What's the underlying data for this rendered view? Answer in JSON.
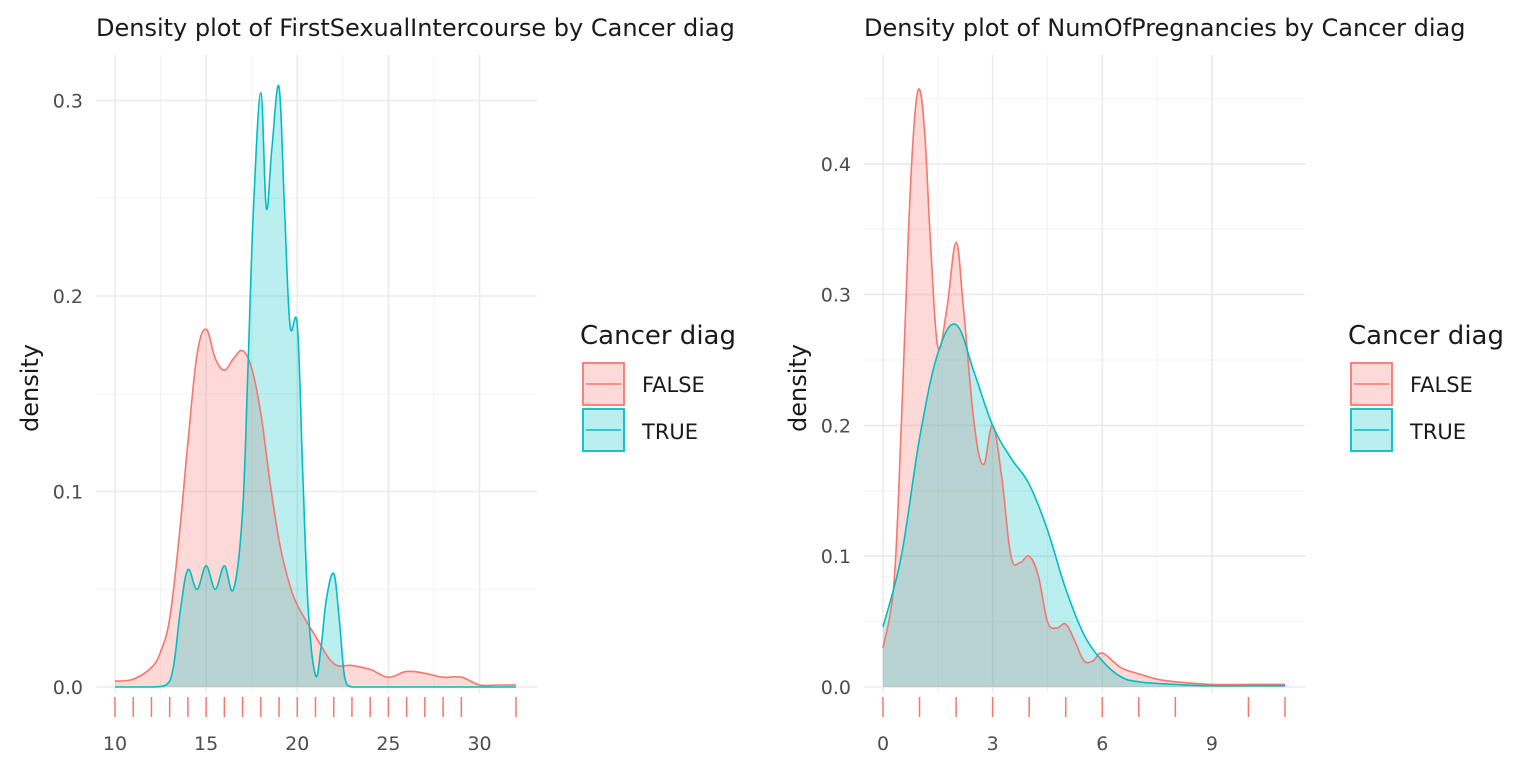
{
  "colors": {
    "false": "#F8766D",
    "true": "#00BFC4"
  },
  "chart_data": [
    {
      "type": "area",
      "title": "Density plot of FirstSexualIntercourse by Cancer diag",
      "xlabel": "",
      "ylabel": "density",
      "xlim": [
        10,
        32
      ],
      "ylim": [
        0,
        0.31
      ],
      "x_ticks": [
        10,
        15,
        20,
        25,
        30
      ],
      "x_ticks_labels": [
        "10",
        "15",
        "20",
        "25",
        "30"
      ],
      "y_ticks": [
        0,
        0.1,
        0.2,
        0.3
      ],
      "y_ticks_labels": [
        "0.0",
        "0.1",
        "0.2",
        "0.3"
      ],
      "grid": true,
      "legend": {
        "title": "Cancer diag",
        "position": "right",
        "entries": [
          "FALSE",
          "TRUE"
        ]
      },
      "rug": [
        10,
        11,
        12,
        13,
        14,
        15,
        16,
        17,
        18,
        19,
        20,
        21,
        22,
        23,
        24,
        25,
        26,
        27,
        28,
        29,
        32
      ],
      "series": [
        {
          "name": "FALSE",
          "x": [
            10,
            11,
            12,
            12.5,
            13,
            13.5,
            14,
            14.5,
            15,
            15.5,
            16,
            16.5,
            17,
            17.5,
            18,
            18.5,
            19,
            19.5,
            20,
            21,
            22,
            23,
            24,
            25,
            26,
            27,
            28,
            29,
            30,
            31,
            32
          ],
          "y": [
            0.003,
            0.004,
            0.01,
            0.018,
            0.035,
            0.075,
            0.125,
            0.17,
            0.183,
            0.168,
            0.162,
            0.168,
            0.172,
            0.163,
            0.14,
            0.105,
            0.075,
            0.055,
            0.042,
            0.026,
            0.012,
            0.011,
            0.009,
            0.005,
            0.008,
            0.007,
            0.005,
            0.005,
            0.001,
            0.001,
            0.001
          ]
        },
        {
          "name": "TRUE",
          "x": [
            10,
            12,
            12.8,
            13.2,
            13.6,
            14,
            14.5,
            15,
            15.5,
            16,
            16.5,
            17,
            17.3,
            17.6,
            18,
            18.3,
            18.6,
            19,
            19.3,
            19.6,
            20,
            20.3,
            20.6,
            21,
            21.3,
            21.6,
            22,
            22.3,
            22.6,
            23,
            24,
            32
          ],
          "y": [
            0,
            0,
            0.001,
            0.01,
            0.04,
            0.06,
            0.05,
            0.062,
            0.05,
            0.062,
            0.05,
            0.09,
            0.165,
            0.245,
            0.304,
            0.245,
            0.275,
            0.307,
            0.245,
            0.185,
            0.185,
            0.11,
            0.04,
            0.006,
            0.02,
            0.045,
            0.058,
            0.035,
            0.005,
            0,
            0,
            0
          ]
        }
      ]
    },
    {
      "type": "area",
      "title": "Density plot of NumOfPregnancies by Cancer diag",
      "xlabel": "",
      "ylabel": "density",
      "xlim": [
        0,
        11
      ],
      "ylim": [
        0,
        0.46
      ],
      "x_ticks": [
        0,
        3,
        6,
        9
      ],
      "x_ticks_labels": [
        "0",
        "3",
        "6",
        "9"
      ],
      "y_ticks": [
        0,
        0.1,
        0.2,
        0.3,
        0.4
      ],
      "y_ticks_labels": [
        "0.0",
        "0.1",
        "0.2",
        "0.3",
        "0.4"
      ],
      "grid": true,
      "legend": {
        "title": "Cancer diag",
        "position": "right",
        "entries": [
          "FALSE",
          "TRUE"
        ]
      },
      "rug": [
        0,
        1,
        2,
        3,
        4,
        5,
        6,
        7,
        8,
        10,
        11
      ],
      "series": [
        {
          "name": "FALSE",
          "x": [
            0,
            0.3,
            0.5,
            0.7,
            0.85,
            1,
            1.15,
            1.3,
            1.5,
            1.75,
            2,
            2.2,
            2.5,
            2.75,
            3,
            3.25,
            3.5,
            3.75,
            4,
            4.25,
            4.5,
            4.75,
            5,
            5.25,
            5.5,
            5.75,
            6,
            6.5,
            7,
            7.5,
            8,
            9,
            10,
            11
          ],
          "y": [
            0.03,
            0.08,
            0.2,
            0.35,
            0.43,
            0.457,
            0.42,
            0.34,
            0.26,
            0.29,
            0.34,
            0.29,
            0.2,
            0.17,
            0.2,
            0.16,
            0.1,
            0.095,
            0.1,
            0.085,
            0.05,
            0.045,
            0.048,
            0.035,
            0.02,
            0.02,
            0.026,
            0.015,
            0.01,
            0.006,
            0.004,
            0.002,
            0.002,
            0.002
          ]
        },
        {
          "name": "TRUE",
          "x": [
            0,
            0.5,
            1,
            1.5,
            2,
            2.5,
            3,
            3.5,
            4,
            4.5,
            5,
            5.5,
            6,
            6.5,
            7,
            8,
            9,
            10,
            11
          ],
          "y": [
            0.046,
            0.1,
            0.19,
            0.255,
            0.277,
            0.24,
            0.2,
            0.175,
            0.155,
            0.12,
            0.075,
            0.04,
            0.02,
            0.008,
            0.004,
            0.002,
            0.001,
            0.001,
            0.001
          ]
        }
      ]
    }
  ]
}
